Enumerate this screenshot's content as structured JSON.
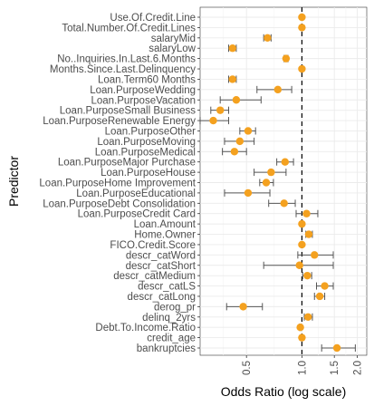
{
  "chart_data": {
    "type": "scatter",
    "subtype": "forest-plot",
    "title": "",
    "xlabel": "Odds Ratio (log scale)",
    "ylabel": "Predictor",
    "x_scale": "log",
    "xlim": [
      0.28,
      2.25
    ],
    "x_ticks": [
      0.5,
      1.0,
      1.5,
      2.0
    ],
    "x_tick_labels": [
      "0.5",
      "1.0",
      "1.5",
      "2.0"
    ],
    "reference_line": 1.0,
    "grid": true,
    "point_color": "#f4a11f",
    "predictors": [
      {
        "name": "Use.Of.Credit.Line",
        "or": 1.0,
        "lo": 0.99,
        "hi": 1.01
      },
      {
        "name": "Total.Number.Of.Credit.Lines",
        "or": 1.0,
        "lo": 0.99,
        "hi": 1.01
      },
      {
        "name": "salaryMid",
        "or": 0.65,
        "lo": 0.62,
        "hi": 0.68
      },
      {
        "name": "salaryLow",
        "or": 0.42,
        "lo": 0.4,
        "hi": 0.44
      },
      {
        "name": "No..Inquiries.In.Last.6.Months",
        "or": 0.82,
        "lo": 0.8,
        "hi": 0.84
      },
      {
        "name": "Months.Since.Last.Delinquency",
        "or": 1.0,
        "lo": 0.99,
        "hi": 1.01
      },
      {
        "name": "Loan.Term60 Months",
        "or": 0.42,
        "lo": 0.4,
        "hi": 0.44
      },
      {
        "name": "Loan.PurposeWedding",
        "or": 0.74,
        "lo": 0.57,
        "hi": 0.88
      },
      {
        "name": "Loan.PurposeVacation",
        "or": 0.44,
        "lo": 0.36,
        "hi": 0.6
      },
      {
        "name": "Loan.PurposeSmall Business",
        "or": 0.36,
        "lo": 0.32,
        "hi": 0.4
      },
      {
        "name": "Loan.PurposeRenewable Energy",
        "or": 0.33,
        "lo": 0.28,
        "hi": 0.4
      },
      {
        "name": "Loan.PurposeOther",
        "or": 0.51,
        "lo": 0.46,
        "hi": 0.56
      },
      {
        "name": "Loan.PurposeMoving",
        "or": 0.46,
        "lo": 0.38,
        "hi": 0.55
      },
      {
        "name": "Loan.PurposeMedical",
        "or": 0.43,
        "lo": 0.37,
        "hi": 0.5
      },
      {
        "name": "Loan.PurposeMajor Purchase",
        "or": 0.81,
        "lo": 0.73,
        "hi": 0.9
      },
      {
        "name": "Loan.PurposeHouse",
        "or": 0.68,
        "lo": 0.55,
        "hi": 0.82
      },
      {
        "name": "Loan.PurposeHome Improvement",
        "or": 0.64,
        "lo": 0.59,
        "hi": 0.7
      },
      {
        "name": "Loan.PurposeEducational",
        "or": 0.51,
        "lo": 0.38,
        "hi": 0.67
      },
      {
        "name": "Loan.PurposeDebt Consolidation",
        "or": 0.8,
        "lo": 0.66,
        "hi": 0.92
      },
      {
        "name": "Loan.PurposeCredit Card",
        "or": 1.06,
        "lo": 0.93,
        "hi": 1.22
      },
      {
        "name": "Loan.Amount",
        "or": 1.0,
        "lo": 0.99,
        "hi": 1.01
      },
      {
        "name": "Home.Owner",
        "or": 1.09,
        "lo": 1.05,
        "hi": 1.14
      },
      {
        "name": "FICO.Credit.Score",
        "or": 1.0,
        "lo": 0.99,
        "hi": 1.01
      },
      {
        "name": "descr_catWord",
        "or": 1.17,
        "lo": 0.95,
        "hi": 1.48
      },
      {
        "name": "descr_catShort",
        "or": 0.97,
        "lo": 0.62,
        "hi": 1.48
      },
      {
        "name": "descr_catMedium",
        "or": 1.07,
        "lo": 1.01,
        "hi": 1.13
      },
      {
        "name": "descr_catLS",
        "or": 1.33,
        "lo": 1.2,
        "hi": 1.48
      },
      {
        "name": "descr_catLong",
        "or": 1.25,
        "lo": 1.17,
        "hi": 1.33
      },
      {
        "name": "derog_pr",
        "or": 0.48,
        "lo": 0.39,
        "hi": 0.61
      },
      {
        "name": "delinq_2yrs",
        "or": 1.08,
        "lo": 1.03,
        "hi": 1.14
      },
      {
        "name": "Debt.To.Income.Ratio",
        "or": 0.98,
        "lo": 0.97,
        "hi": 0.99
      },
      {
        "name": "credit_age",
        "or": 1.0,
        "lo": 0.99,
        "hi": 1.01
      },
      {
        "name": "bankruptcies",
        "or": 1.55,
        "lo": 1.28,
        "hi": 1.95
      }
    ]
  }
}
